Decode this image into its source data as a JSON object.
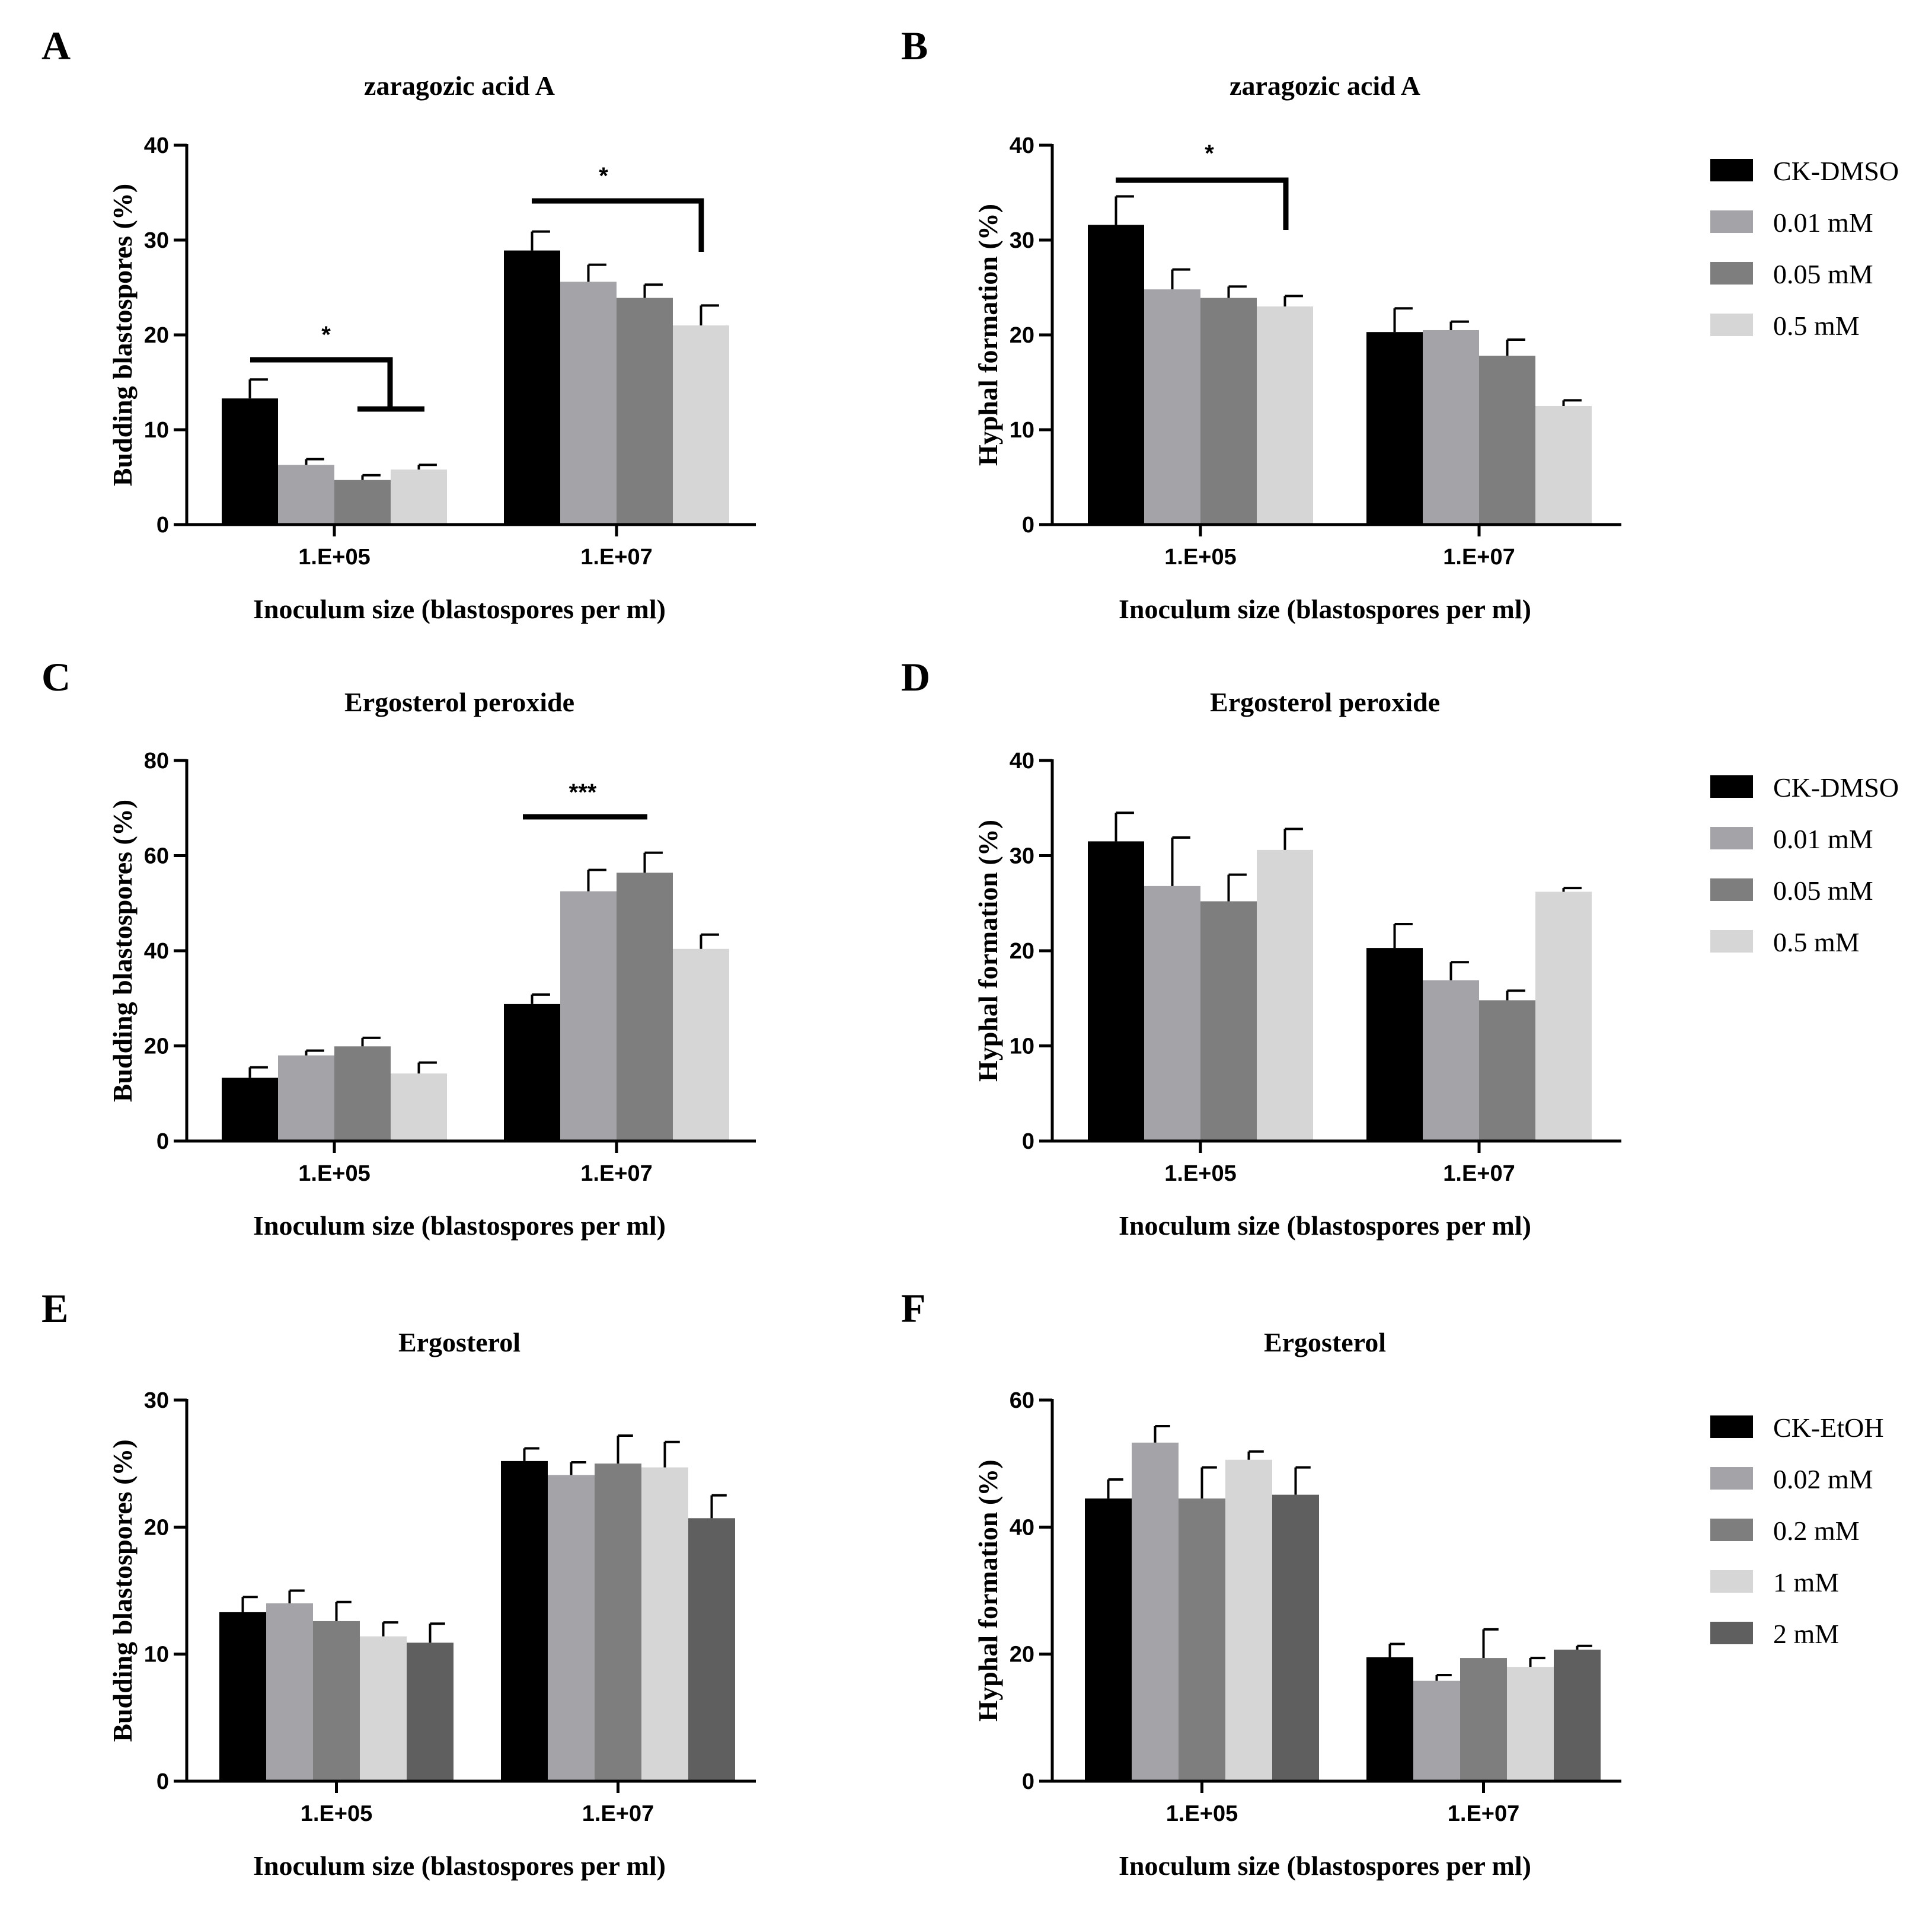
{
  "colors": {
    "black": "#000000",
    "grey_light": "#a4a4a8",
    "grey_mid": "#7e7e7e",
    "grey_pale": "#d6d6d6",
    "grey_dark": "#5f5f5f"
  },
  "legends": {
    "dmso": {
      "entries": [
        {
          "label": "CK-DMSO",
          "color": "#000000"
        },
        {
          "label": "0.01 mM",
          "color": "#a4a4a8"
        },
        {
          "label": "0.05 mM",
          "color": "#7e7e7e"
        },
        {
          "label": "0.5 mM",
          "color": "#d6d6d6"
        }
      ]
    },
    "dmso_2": {
      "entries": [
        {
          "label": "CK-DMSO",
          "color": "#000000"
        },
        {
          "label": "0.01 mM",
          "color": "#a4a4a8"
        },
        {
          "label": "0.05 mM",
          "color": "#7e7e7e"
        },
        {
          "label": "0.5 mM",
          "color": "#d6d6d6"
        }
      ]
    },
    "etoh": {
      "entries": [
        {
          "label": "CK-EtOH",
          "color": "#000000"
        },
        {
          "label": "0.02 mM",
          "color": "#a4a4a8"
        },
        {
          "label": "0.2 mM",
          "color": "#7e7e7e"
        },
        {
          "label": "1 mM",
          "color": "#d6d6d6"
        },
        {
          "label": "2 mM",
          "color": "#5f5f5f"
        }
      ]
    }
  },
  "chart_data": [
    {
      "panel": "A",
      "type": "bar",
      "title": "zaragozic acid A",
      "xlabel": "Inoculum size (blastospores per ml)",
      "ylabel": "Budding blastospores (%)",
      "ylim": [
        0,
        40
      ],
      "yticks": [
        "0",
        "10",
        "20",
        "30",
        "40"
      ],
      "categories": [
        "1.E+05",
        "1.E+07"
      ],
      "series": [
        {
          "name": "CK-DMSO",
          "color": "#000000",
          "values": [
            13.3,
            28.9
          ],
          "errors": [
            2.0,
            2.0
          ]
        },
        {
          "name": "0.01 mM",
          "color": "#a4a4a8",
          "values": [
            6.3,
            25.6
          ],
          "errors": [
            0.6,
            1.8
          ]
        },
        {
          "name": "0.05 mM",
          "color": "#7e7e7e",
          "values": [
            4.7,
            23.9
          ],
          "errors": [
            0.5,
            1.4
          ]
        },
        {
          "name": "0.5 mM",
          "color": "#d6d6d6",
          "values": [
            5.8,
            21.0
          ],
          "errors": [
            0.5,
            2.1
          ]
        }
      ],
      "annotations": [
        "*",
        "*"
      ]
    },
    {
      "panel": "B",
      "type": "bar",
      "title": "zaragozic acid A",
      "xlabel": "Inoculum size (blastospores per ml)",
      "ylabel": "Hyphal formation (%)",
      "ylim": [
        0,
        40
      ],
      "yticks": [
        "0",
        "10",
        "20",
        "30",
        "40"
      ],
      "categories": [
        "1.E+05",
        "1.E+07"
      ],
      "series": [
        {
          "name": "CK-DMSO",
          "color": "#000000",
          "values": [
            31.6,
            20.3
          ],
          "errors": [
            3.0,
            2.5
          ]
        },
        {
          "name": "0.01 mM",
          "color": "#a4a4a8",
          "values": [
            24.8,
            20.5
          ],
          "errors": [
            2.1,
            0.9
          ]
        },
        {
          "name": "0.05 mM",
          "color": "#7e7e7e",
          "values": [
            23.9,
            17.8
          ],
          "errors": [
            1.2,
            1.7
          ]
        },
        {
          "name": "0.5 mM",
          "color": "#d6d6d6",
          "values": [
            23.0,
            12.5
          ],
          "errors": [
            1.1,
            0.6
          ]
        }
      ],
      "annotations": [
        "*"
      ]
    },
    {
      "panel": "C",
      "type": "bar",
      "title": "Ergosterol peroxide",
      "xlabel": "Inoculum size (blastospores per ml)",
      "ylabel": "Budding blastospores (%)",
      "ylim": [
        0,
        80
      ],
      "yticks": [
        "0",
        "20",
        "40",
        "60",
        "80"
      ],
      "categories": [
        "1.E+05",
        "1.E+07"
      ],
      "series": [
        {
          "name": "CK-DMSO",
          "color": "#000000",
          "values": [
            13.3,
            28.8
          ],
          "errors": [
            2.2,
            2.0
          ]
        },
        {
          "name": "0.01 mM",
          "color": "#a4a4a8",
          "values": [
            18.0,
            52.5
          ],
          "errors": [
            1.0,
            4.5
          ]
        },
        {
          "name": "0.05 mM",
          "color": "#7e7e7e",
          "values": [
            19.9,
            56.4
          ],
          "errors": [
            1.8,
            4.2
          ]
        },
        {
          "name": "0.5 mM",
          "color": "#d6d6d6",
          "values": [
            14.2,
            40.4
          ],
          "errors": [
            2.3,
            3.0
          ]
        }
      ],
      "annotations": [
        "***"
      ]
    },
    {
      "panel": "D",
      "type": "bar",
      "title": "Ergosterol peroxide",
      "xlabel": "Inoculum size (blastospores per ml)",
      "ylabel": "Hyphal formation (%)",
      "ylim": [
        0,
        40
      ],
      "yticks": [
        "0",
        "10",
        "20",
        "30",
        "40"
      ],
      "categories": [
        "1.E+05",
        "1.E+07"
      ],
      "series": [
        {
          "name": "CK-DMSO",
          "color": "#000000",
          "values": [
            31.5,
            20.3
          ],
          "errors": [
            3.0,
            2.5
          ]
        },
        {
          "name": "0.01 mM",
          "color": "#a4a4a8",
          "values": [
            26.8,
            16.9
          ],
          "errors": [
            5.1,
            1.9
          ]
        },
        {
          "name": "0.05 mM",
          "color": "#7e7e7e",
          "values": [
            25.2,
            14.8
          ],
          "errors": [
            2.8,
            1.0
          ]
        },
        {
          "name": "0.5 mM",
          "color": "#d6d6d6",
          "values": [
            30.6,
            26.2
          ],
          "errors": [
            2.2,
            0.4
          ]
        }
      ],
      "annotations": []
    },
    {
      "panel": "E",
      "type": "bar",
      "title": "Ergosterol",
      "xlabel": "Inoculum size (blastospores per ml)",
      "ylabel": "Budding blastospores (%)",
      "ylim": [
        0,
        30
      ],
      "yticks": [
        "0",
        "10",
        "20",
        "30"
      ],
      "categories": [
        "1.E+05",
        "1.E+07"
      ],
      "series": [
        {
          "name": "CK-EtOH",
          "color": "#000000",
          "values": [
            13.3,
            25.2
          ],
          "errors": [
            1.2,
            1.0
          ]
        },
        {
          "name": "0.02 mM",
          "color": "#a4a4a8",
          "values": [
            14.0,
            24.1
          ],
          "errors": [
            1.0,
            1.0
          ]
        },
        {
          "name": "0.2 mM",
          "color": "#7e7e7e",
          "values": [
            12.6,
            25.0
          ],
          "errors": [
            1.5,
            2.2
          ]
        },
        {
          "name": "1 mM",
          "color": "#d6d6d6",
          "values": [
            11.4,
            24.7
          ],
          "errors": [
            1.1,
            2.0
          ]
        },
        {
          "name": "2 mM",
          "color": "#5f5f5f",
          "values": [
            10.9,
            20.7
          ],
          "errors": [
            1.5,
            1.8
          ]
        }
      ],
      "annotations": []
    },
    {
      "panel": "F",
      "type": "bar",
      "title": "Ergosterol",
      "xlabel": "Inoculum size (blastospores per ml)",
      "ylabel": "Hyphal formation (%)",
      "ylim": [
        0,
        60
      ],
      "yticks": [
        "20",
        "40",
        "60"
      ],
      "ytick_zero": "0",
      "categories": [
        "1.E+05",
        "1.E+07"
      ],
      "series": [
        {
          "name": "CK-EtOH",
          "color": "#000000",
          "values": [
            44.5,
            19.5
          ],
          "errors": [
            3.0,
            2.1
          ]
        },
        {
          "name": "0.02 mM",
          "color": "#a4a4a8",
          "values": [
            53.3,
            15.8
          ],
          "errors": [
            2.6,
            0.9
          ]
        },
        {
          "name": "0.2 mM",
          "color": "#7e7e7e",
          "values": [
            44.5,
            19.4
          ],
          "errors": [
            4.9,
            4.5
          ]
        },
        {
          "name": "1 mM",
          "color": "#d6d6d6",
          "values": [
            50.6,
            18.0
          ],
          "errors": [
            1.3,
            1.4
          ]
        },
        {
          "name": "2 mM",
          "color": "#5f5f5f",
          "values": [
            45.1,
            20.7
          ],
          "errors": [
            4.3,
            0.6
          ]
        }
      ],
      "annotations": []
    }
  ]
}
